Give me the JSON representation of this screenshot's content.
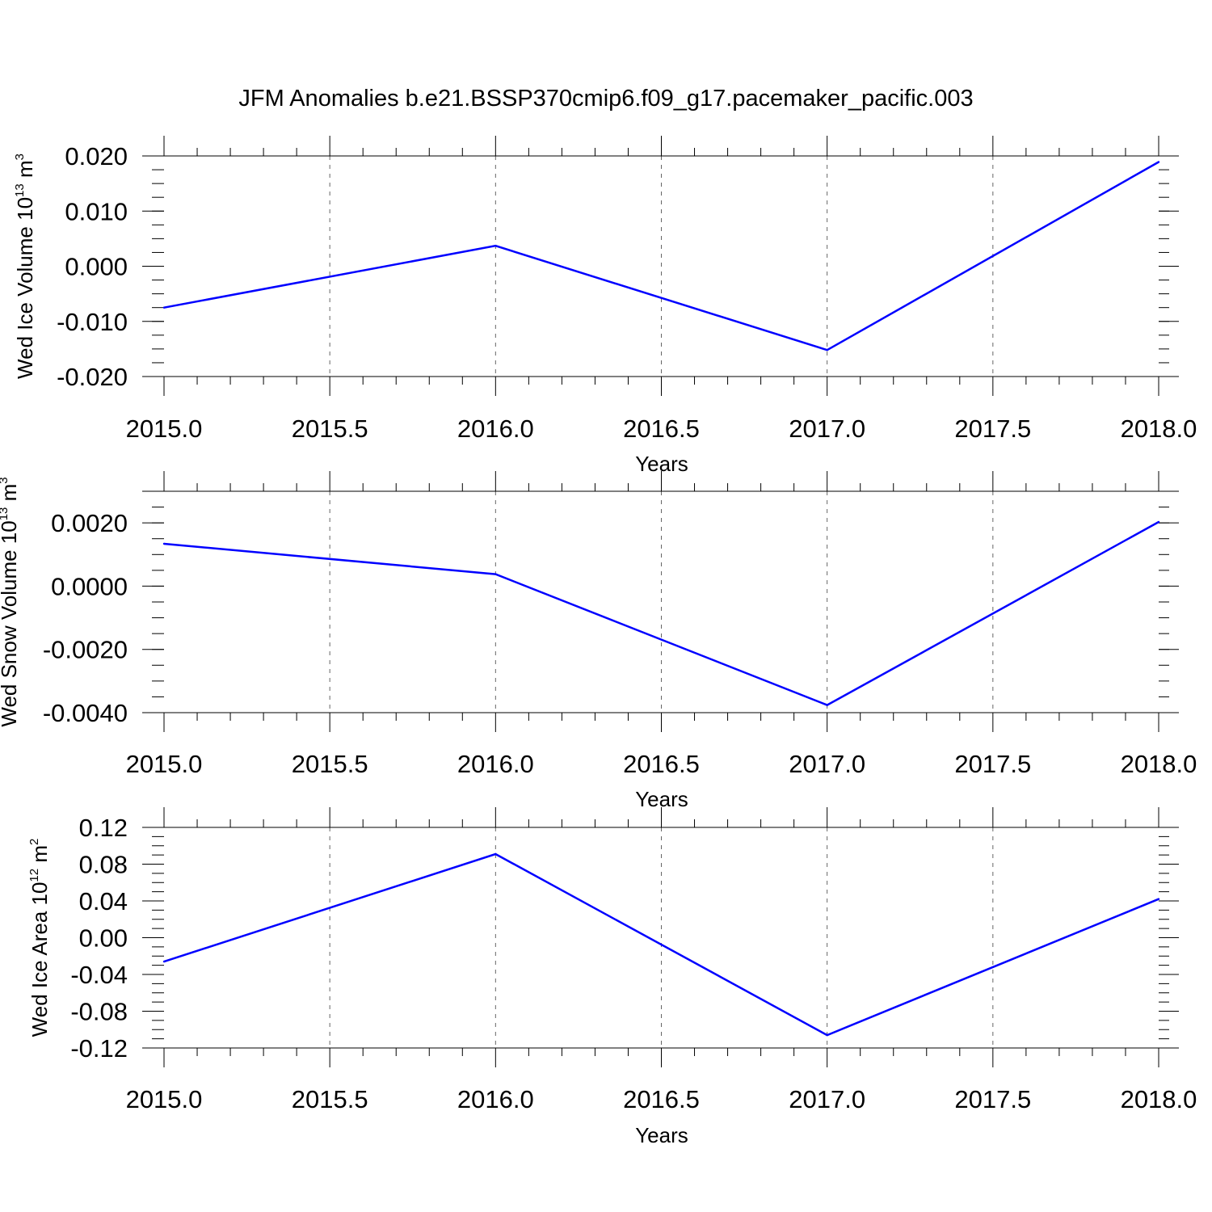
{
  "figure_title": "JFM Anomalies b.e21.BSSP370cmip6.f09_g17.pacemaker_pacific.003",
  "colors": {
    "series_line": "#0000ff",
    "axis": "#000000",
    "grid": "#666666"
  },
  "chart_data": [
    {
      "type": "line",
      "title": "",
      "xlabel": "Years",
      "ylabel": {
        "base": "Wed Ice Volume 10",
        "exponent": "13",
        "unit": " m",
        "unit_exponent": "3"
      },
      "x": [
        2015,
        2016,
        2017,
        2018
      ],
      "series": [
        {
          "values": [
            -0.0075,
            0.0037,
            -0.0152,
            0.0189
          ]
        }
      ],
      "xlim": [
        2015,
        2018
      ],
      "ylim": [
        -0.02,
        0.02
      ],
      "xticks": [
        2015.0,
        2015.5,
        2016.0,
        2016.5,
        2017.0,
        2017.5,
        2018.0
      ],
      "xtick_labels": [
        "2015.0",
        "2015.5",
        "2016.0",
        "2016.5",
        "2017.0",
        "2017.5",
        "2018.0"
      ],
      "yticks": [
        0.02,
        0.01,
        0.0,
        -0.01,
        -0.02
      ],
      "ytick_labels": [
        "0.020",
        "0.010",
        "0.000",
        "-0.010",
        "-0.020"
      ],
      "grid": "vertical dashed at major x ticks"
    },
    {
      "type": "line",
      "title": "",
      "xlabel": "Years",
      "ylabel": {
        "base": "Wed Snow Volume 10",
        "exponent": "13",
        "unit": " m",
        "unit_exponent": "3"
      },
      "x": [
        2015,
        2016,
        2017,
        2018
      ],
      "series": [
        {
          "values": [
            0.00134,
            0.00038,
            -0.00376,
            0.00203
          ]
        }
      ],
      "xlim": [
        2015,
        2018
      ],
      "ylim": [
        -0.004,
        0.003
      ],
      "xticks": [
        2015.0,
        2015.5,
        2016.0,
        2016.5,
        2017.0,
        2017.5,
        2018.0
      ],
      "xtick_labels": [
        "2015.0",
        "2015.5",
        "2016.0",
        "2016.5",
        "2017.0",
        "2017.5",
        "2018.0"
      ],
      "yticks": [
        0.002,
        0.0,
        -0.002,
        -0.004
      ],
      "ytick_labels": [
        "0.0020",
        "0.0000",
        "-0.0020",
        "-0.0040"
      ],
      "grid": "vertical dashed at major x ticks"
    },
    {
      "type": "line",
      "title": "",
      "xlabel": "Years",
      "ylabel": {
        "base": "Wed Ice Area 10",
        "exponent": "12",
        "unit": " m",
        "unit_exponent": "2"
      },
      "x": [
        2015,
        2016,
        2017,
        2018
      ],
      "series": [
        {
          "values": [
            -0.026,
            0.091,
            -0.106,
            0.042
          ]
        }
      ],
      "xlim": [
        2015,
        2018
      ],
      "ylim": [
        -0.12,
        0.12
      ],
      "xticks": [
        2015.0,
        2015.5,
        2016.0,
        2016.5,
        2017.0,
        2017.5,
        2018.0
      ],
      "xtick_labels": [
        "2015.0",
        "2015.5",
        "2016.0",
        "2016.5",
        "2017.0",
        "2017.5",
        "2018.0"
      ],
      "yticks": [
        0.12,
        0.08,
        0.04,
        0.0,
        -0.04,
        -0.08,
        -0.12
      ],
      "ytick_labels": [
        "0.12",
        "0.08",
        "0.04",
        "0.00",
        "-0.04",
        "-0.08",
        "-0.12"
      ],
      "grid": "vertical dashed at major x ticks"
    }
  ]
}
